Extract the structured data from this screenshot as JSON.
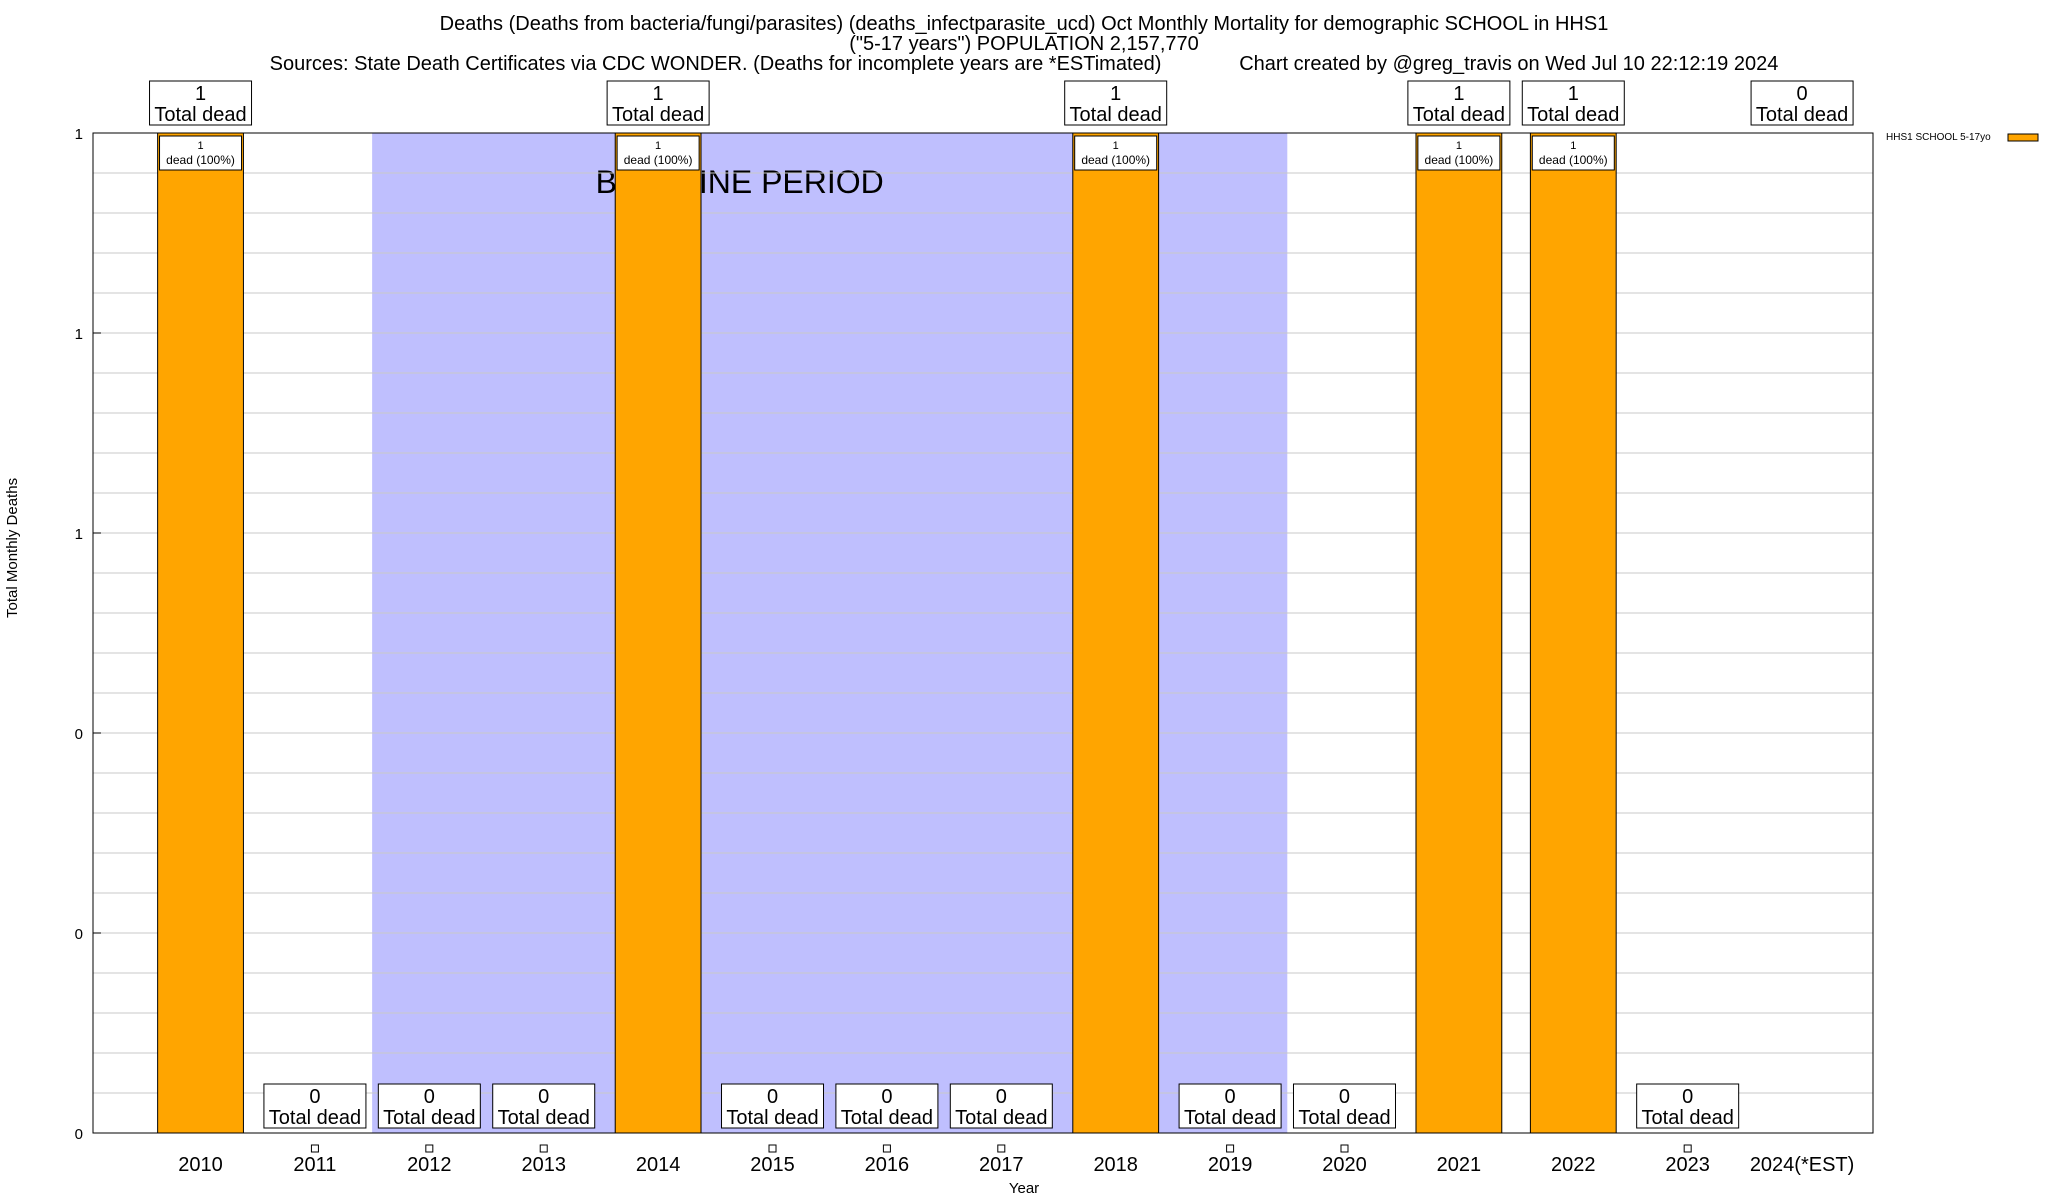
{
  "title": {
    "line1": "Deaths (Deaths from bacteria/fungi/parasites) (deaths_infectparasite_ucd) Oct Monthly Mortality for demographic SCHOOL in HHS1",
    "line2": "(\"5-17 years\") POPULATION 2,157,770",
    "line3": "Sources: State Death Certificates via CDC WONDER. (Deaths for incomplete years are *ESTimated)              Chart created by @greg_travis on Wed Jul 10 22:12:19 2024"
  },
  "chart_data": {
    "type": "bar",
    "xlabel": "Year",
    "ylabel": "Total Monthly Deaths",
    "ylim": [
      0,
      1
    ],
    "y_tick_labels": [
      "0",
      "0",
      "0",
      "1",
      "1",
      "1"
    ],
    "categories": [
      "2010",
      "2011",
      "2012",
      "2013",
      "2014",
      "2015",
      "2016",
      "2017",
      "2018",
      "2019",
      "2020",
      "2021",
      "2022",
      "2023",
      "2024(*EST)"
    ],
    "series": [
      {
        "name": "HHS1 SCHOOL 5-17yo",
        "color": "#ffa500",
        "values": [
          1,
          0,
          0,
          0,
          1,
          0,
          0,
          0,
          1,
          0,
          0,
          1,
          1,
          0,
          0
        ]
      }
    ],
    "total_labels": [
      "1",
      "0",
      "0",
      "0",
      "1",
      "0",
      "0",
      "0",
      "1",
      "0",
      "0",
      "1",
      "1",
      "0",
      "0"
    ],
    "total_label_suffix": "Total dead",
    "bar_inner_labels": {
      "count": "1",
      "text": "dead (100%)"
    },
    "baseline": {
      "label": "BASELINE PERIOD",
      "from": "2012",
      "to": "2019",
      "color": "#bfbffe"
    },
    "grid": true,
    "legend_position": "top-right"
  }
}
